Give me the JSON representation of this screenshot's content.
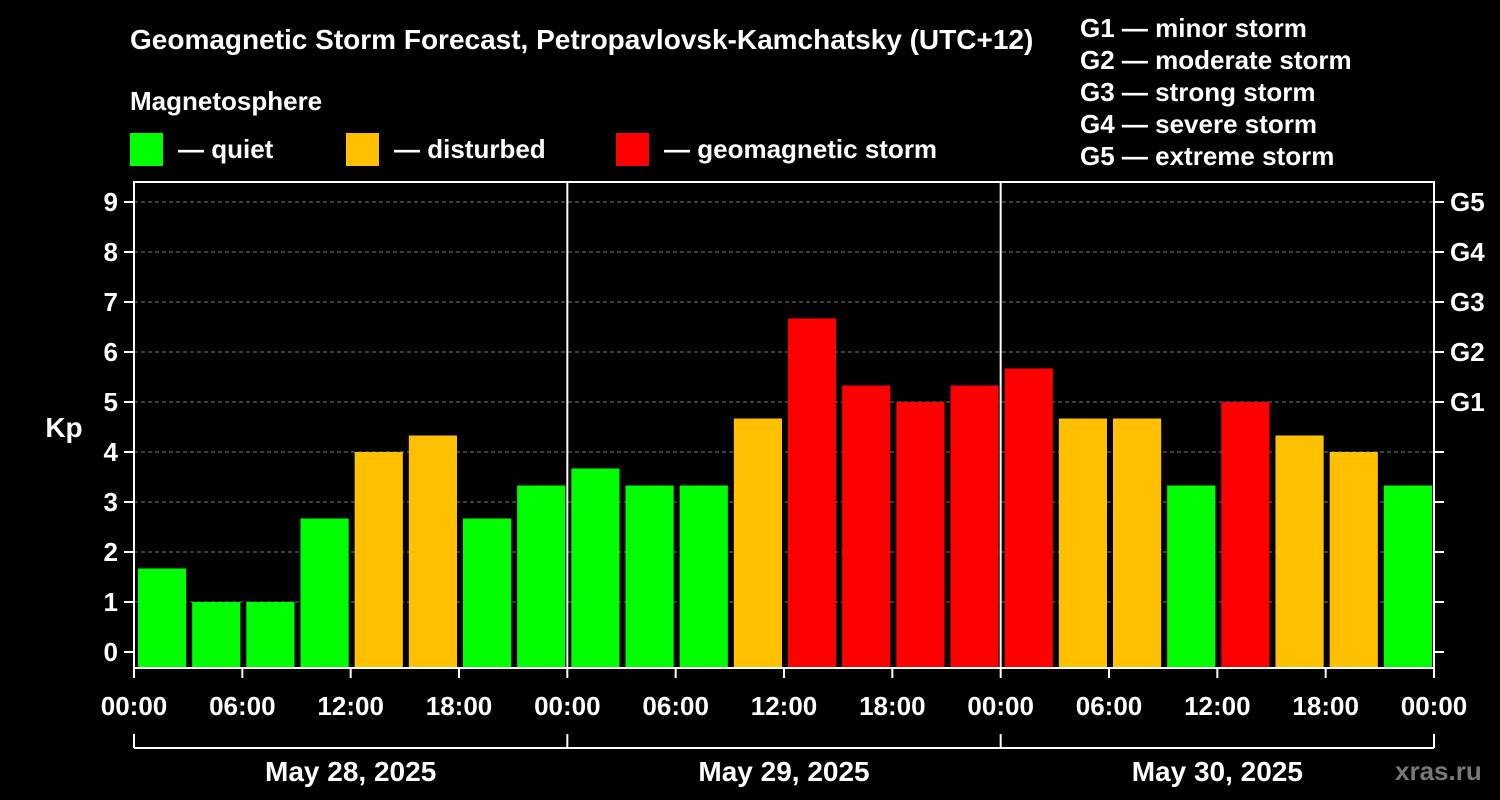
{
  "chart_data": {
    "type": "bar",
    "title": "Geomagnetic Storm Forecast, Petropavlovsk-Kamchatsky (UTC+12)",
    "ylabel": "Kp",
    "ylim": [
      0,
      9
    ],
    "yticks": [
      "0",
      "1",
      "2",
      "3",
      "4",
      "5",
      "6",
      "7",
      "8",
      "9"
    ],
    "right_ticks": [
      {
        "kp": 5,
        "label": "G1"
      },
      {
        "kp": 6,
        "label": "G2"
      },
      {
        "kp": 7,
        "label": "G3"
      },
      {
        "kp": 8,
        "label": "G4"
      },
      {
        "kp": 9,
        "label": "G5"
      }
    ],
    "grid": true,
    "xticks": [
      "00:00",
      "06:00",
      "12:00",
      "18:00",
      "00:00",
      "06:00",
      "12:00",
      "18:00",
      "00:00",
      "06:00",
      "12:00",
      "18:00",
      "00:00"
    ],
    "days": [
      "May 28, 2025",
      "May 29, 2025",
      "May 30, 2025"
    ],
    "bar_interval_hours": 3,
    "values": [
      1.67,
      1.0,
      1.0,
      2.67,
      4.0,
      4.33,
      2.67,
      3.33,
      3.67,
      3.33,
      3.33,
      4.67,
      6.67,
      5.33,
      5.0,
      5.33,
      5.67,
      4.67,
      4.67,
      3.33,
      5.0,
      4.33,
      4.0,
      3.33
    ],
    "levels": [
      "quiet",
      "quiet",
      "quiet",
      "quiet",
      "disturbed",
      "disturbed",
      "quiet",
      "quiet",
      "quiet",
      "quiet",
      "quiet",
      "disturbed",
      "storm",
      "storm",
      "storm",
      "storm",
      "storm",
      "disturbed",
      "disturbed",
      "quiet",
      "storm",
      "disturbed",
      "disturbed",
      "quiet"
    ]
  },
  "legend": {
    "heading": "Magnetosphere",
    "quiet": "— quiet",
    "disturbed": "— disturbed",
    "storm": "— geomagnetic storm"
  },
  "storm_scale": [
    "G1 — minor storm",
    "G2 — moderate storm",
    "G3 — strong storm",
    "G4 — severe storm",
    "G5 — extreme storm"
  ],
  "colors": {
    "quiet": "#00ff00",
    "disturbed": "#ffc000",
    "storm": "#ff0000",
    "background": "#000000",
    "axis": "#ffffff",
    "grid": "#777777"
  },
  "brand": "xras.ru"
}
